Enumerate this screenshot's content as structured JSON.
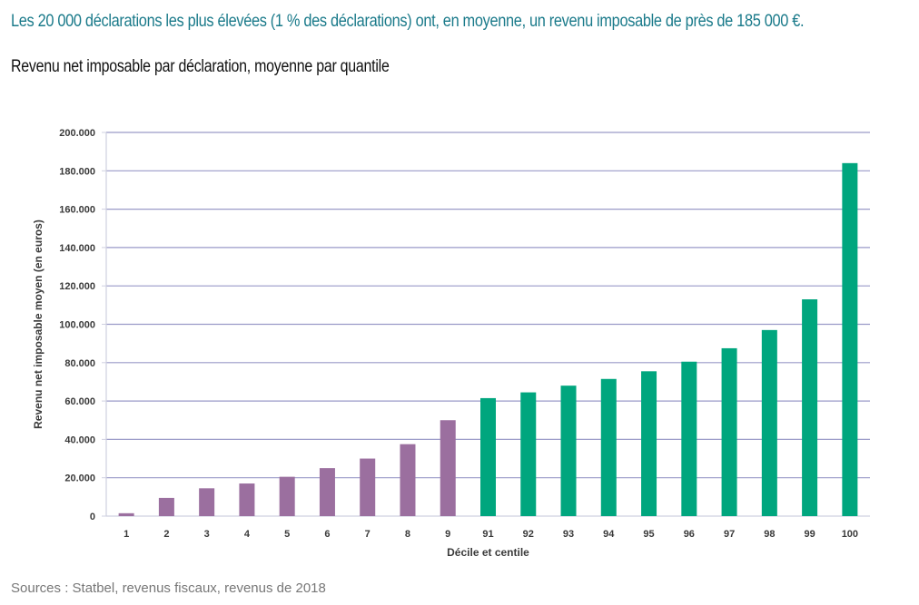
{
  "header": {
    "headline": "Les 20 000 déclarations les plus élevées (1 % des déclarations) ont, en moyenne, un revenu imposable de près de 185 000 €.",
    "subtitle": "Revenu net imposable par déclaration, moyenne par quantile"
  },
  "footer": {
    "source": "Sources : Statbel, revenus fiscaux, revenus de 2018"
  },
  "colors": {
    "headline": "#1a7a8a",
    "decile_bar": "#9b6f9f",
    "centile_bar": "#00a67e",
    "gridline": "#9a9ac8",
    "axis": "#cfd0e0"
  },
  "chart_data": {
    "type": "bar",
    "title": "",
    "xlabel": "Décile et centile",
    "ylabel": "Revenu net imposable moyen (en euros)",
    "ylim": [
      0,
      200000
    ],
    "yticks": [
      0,
      20000,
      40000,
      60000,
      80000,
      100000,
      120000,
      140000,
      160000,
      180000,
      200000
    ],
    "ytick_labels": [
      "0",
      "20.000",
      "40.000",
      "60.000",
      "80.000",
      "100.000",
      "120.000",
      "140.000",
      "160.000",
      "180.000",
      "200.000"
    ],
    "grid": true,
    "categories": [
      "1",
      "2",
      "3",
      "4",
      "5",
      "6",
      "7",
      "8",
      "9",
      "91",
      "92",
      "93",
      "94",
      "95",
      "96",
      "97",
      "98",
      "99",
      "100"
    ],
    "values": [
      1500,
      9500,
      14500,
      17000,
      20500,
      25000,
      30000,
      37500,
      50000,
      61500,
      64500,
      68000,
      71500,
      75500,
      80500,
      87500,
      97000,
      113000,
      184000
    ],
    "groups": [
      "decile",
      "decile",
      "decile",
      "decile",
      "decile",
      "decile",
      "decile",
      "decile",
      "decile",
      "centile",
      "centile",
      "centile",
      "centile",
      "centile",
      "centile",
      "centile",
      "centile",
      "centile",
      "centile"
    ]
  }
}
